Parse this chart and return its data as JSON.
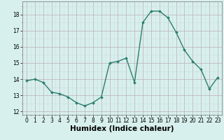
{
  "x": [
    0,
    1,
    2,
    3,
    4,
    5,
    6,
    7,
    8,
    9,
    10,
    11,
    12,
    13,
    14,
    15,
    16,
    17,
    18,
    19,
    20,
    21,
    22,
    23
  ],
  "y": [
    13.9,
    14.0,
    13.8,
    13.2,
    13.1,
    12.9,
    12.55,
    12.35,
    12.55,
    12.9,
    15.0,
    15.1,
    15.3,
    13.8,
    17.5,
    18.2,
    18.2,
    17.8,
    16.9,
    15.8,
    15.1,
    14.6,
    13.4,
    14.1
  ],
  "line_color": "#2d7d6e",
  "marker": "D",
  "marker_size": 2.0,
  "bg_color": "#d8f0ed",
  "grid_major_color": "#c0b8c0",
  "grid_minor_color": "#c8dedd",
  "xlabel": "Humidex (Indice chaleur)",
  "ylim": [
    11.8,
    18.8
  ],
  "xlim": [
    -0.5,
    23.5
  ],
  "yticks": [
    12,
    13,
    14,
    15,
    16,
    17,
    18
  ],
  "xticks": [
    0,
    1,
    2,
    3,
    4,
    5,
    6,
    7,
    8,
    9,
    10,
    11,
    12,
    13,
    14,
    15,
    16,
    17,
    18,
    19,
    20,
    21,
    22,
    23
  ],
  "tick_fontsize": 5.5,
  "xlabel_fontsize": 7.5,
  "line_width": 1.0,
  "marker_color": "#2d7d6e",
  "spine_color": "#888888"
}
